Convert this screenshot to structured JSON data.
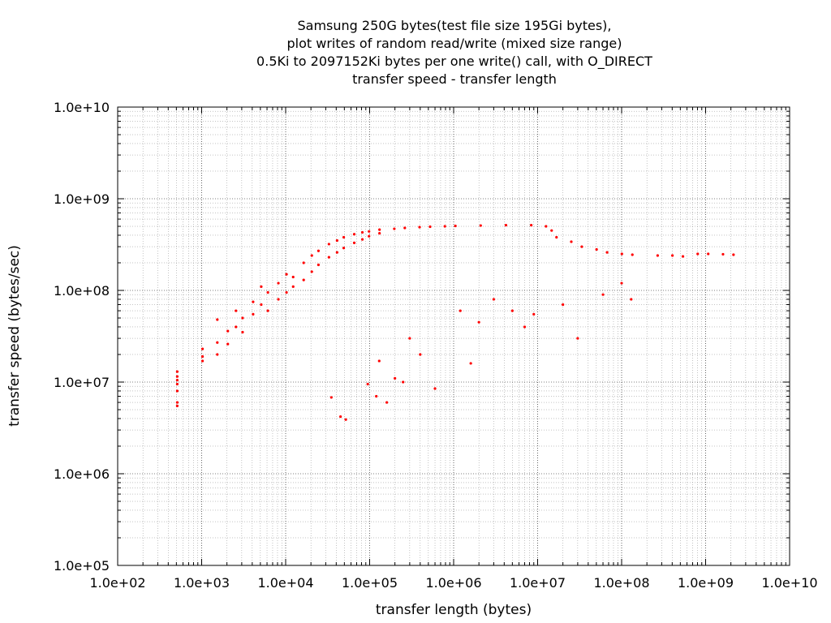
{
  "chart_data": {
    "type": "scatter",
    "title_lines": [
      "Samsung 250G bytes(test file size 195Gi bytes),",
      "plot writes of random read/write (mixed size range)",
      "0.5Ki to 2097152Ki bytes per one write() call, with O_DIRECT",
      "transfer speed - transfer length"
    ],
    "xlabel": "transfer length (bytes)",
    "ylabel": "transfer speed (bytes/sec)",
    "xscale": "log",
    "yscale": "log",
    "xlim": [
      100,
      10000000000
    ],
    "ylim": [
      100000,
      10000000000
    ],
    "x_ticks": [
      "1.0e+02",
      "1.0e+03",
      "1.0e+04",
      "1.0e+05",
      "1.0e+06",
      "1.0e+07",
      "1.0e+08",
      "1.0e+09",
      "1.0e+10"
    ],
    "y_ticks": [
      "1.0e+05",
      "1.0e+06",
      "1.0e+07",
      "1.0e+08",
      "1.0e+09",
      "1.0e+10"
    ],
    "grid": true,
    "marker_color": "#ff0000",
    "series": [
      {
        "points": [
          [
            512,
            13000000
          ],
          [
            512,
            11500000
          ],
          [
            512,
            10500000
          ],
          [
            512,
            9500000
          ],
          [
            512,
            8000000
          ],
          [
            512,
            6000000
          ],
          [
            512,
            5500000
          ],
          [
            1024,
            23000000
          ],
          [
            1024,
            19000000
          ],
          [
            1024,
            17000000
          ],
          [
            1536,
            48000000
          ],
          [
            1536,
            27000000
          ],
          [
            1536,
            20000000
          ],
          [
            2048,
            36000000
          ],
          [
            2048,
            26000000
          ],
          [
            2560,
            60000000
          ],
          [
            2560,
            40000000
          ],
          [
            3072,
            50000000
          ],
          [
            3072,
            35000000
          ],
          [
            4096,
            75000000
          ],
          [
            4096,
            55000000
          ],
          [
            5120,
            110000000
          ],
          [
            5120,
            70000000
          ],
          [
            6144,
            95000000
          ],
          [
            6144,
            60000000
          ],
          [
            8192,
            120000000
          ],
          [
            8192,
            80000000
          ],
          [
            10240,
            150000000
          ],
          [
            10240,
            95000000
          ],
          [
            12288,
            140000000
          ],
          [
            12288,
            110000000
          ],
          [
            16384,
            200000000
          ],
          [
            16384,
            130000000
          ],
          [
            20480,
            240000000
          ],
          [
            20480,
            160000000
          ],
          [
            24576,
            270000000
          ],
          [
            24576,
            190000000
          ],
          [
            32768,
            320000000
          ],
          [
            32768,
            230000000
          ],
          [
            40960,
            350000000
          ],
          [
            40960,
            260000000
          ],
          [
            49152,
            380000000
          ],
          [
            49152,
            290000000
          ],
          [
            65536,
            410000000
          ],
          [
            65536,
            330000000
          ],
          [
            81920,
            430000000
          ],
          [
            81920,
            360000000
          ],
          [
            98304,
            440000000
          ],
          [
            98304,
            390000000
          ],
          [
            131072,
            460000000
          ],
          [
            131072,
            420000000
          ],
          [
            196608,
            470000000
          ],
          [
            262144,
            480000000
          ],
          [
            393216,
            490000000
          ],
          [
            524288,
            495000000
          ],
          [
            786432,
            500000000
          ],
          [
            1048576,
            505000000
          ],
          [
            2097152,
            510000000
          ],
          [
            4194304,
            515000000
          ],
          [
            8388608,
            515000000
          ],
          [
            12582912,
            500000000
          ],
          [
            14680064,
            450000000
          ],
          [
            16777216,
            380000000
          ],
          [
            25165824,
            340000000
          ],
          [
            33554432,
            300000000
          ],
          [
            50331648,
            280000000
          ],
          [
            67108864,
            260000000
          ],
          [
            100663296,
            250000000
          ],
          [
            134217728,
            245000000
          ],
          [
            268435456,
            240000000
          ],
          [
            402653184,
            240000000
          ],
          [
            536870912,
            235000000
          ],
          [
            805306368,
            250000000
          ],
          [
            1073741824,
            250000000
          ],
          [
            1610612736,
            248000000
          ],
          [
            2147483648,
            245000000
          ],
          [
            35000,
            6800000
          ],
          [
            45000,
            4200000
          ],
          [
            52000,
            3900000
          ],
          [
            95000,
            9500000
          ],
          [
            120000,
            7000000
          ],
          [
            130000,
            17000000
          ],
          [
            160000,
            6000000
          ],
          [
            200000,
            11000000
          ],
          [
            250000,
            10000000
          ],
          [
            300000,
            30000000
          ],
          [
            400000,
            20000000
          ],
          [
            600000,
            8500000
          ],
          [
            1600000,
            16000000
          ],
          [
            1200000,
            60000000
          ],
          [
            2000000,
            45000000
          ],
          [
            3000000,
            80000000
          ],
          [
            5000000,
            60000000
          ],
          [
            7000000,
            40000000
          ],
          [
            9000000,
            55000000
          ],
          [
            20000000,
            70000000
          ],
          [
            30000000,
            30000000
          ],
          [
            60000000,
            90000000
          ],
          [
            100000000,
            120000000
          ],
          [
            130000000,
            80000000
          ]
        ]
      }
    ]
  }
}
